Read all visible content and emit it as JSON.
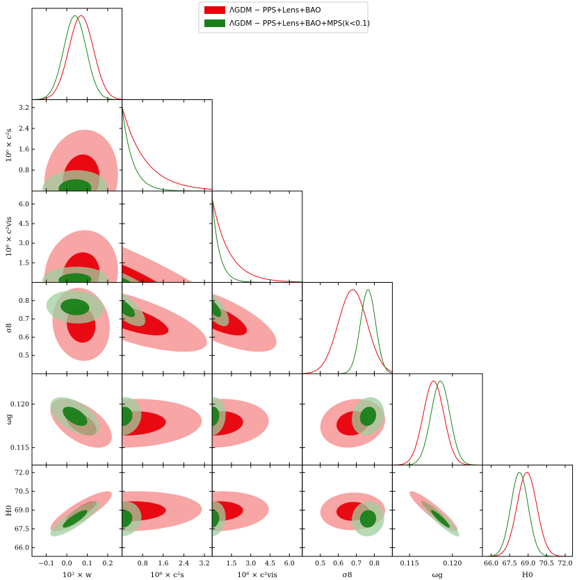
{
  "chart_data": {
    "type": "triangle-corner",
    "colors": {
      "series1": "#e8000b",
      "series2": "#1a7f1a",
      "series1_light": "#f7a0a0",
      "series2_light": "#9fcf9f"
    },
    "legend": {
      "position": "top-center",
      "entries": [
        "ΛGDM − PPS+Lens+BAO",
        "ΛGDM − PPS+Lens+BAO+MPS(k<0.1)"
      ]
    },
    "parameters": [
      {
        "name": "w",
        "label": "10² × w",
        "range": [
          -0.17,
          0.27
        ],
        "ticks": [
          "−0.1",
          "0.0",
          "0.1",
          "0.2"
        ],
        "tick_values": [
          -0.1,
          0.0,
          0.1,
          0.2
        ]
      },
      {
        "name": "cs2",
        "label": "10⁶ × c²s",
        "range": [
          0,
          3.5
        ],
        "ticks": [
          "0.8",
          "1.6",
          "2.4",
          "3.2"
        ],
        "tick_values": [
          0.8,
          1.6,
          2.4,
          3.2
        ]
      },
      {
        "name": "cvis2",
        "label": "10⁶ × c²vis",
        "range": [
          0,
          7
        ],
        "ticks": [
          "1.5",
          "3.0",
          "4.5",
          "6.0"
        ],
        "tick_values": [
          1.5,
          3.0,
          4.5,
          6.0
        ]
      },
      {
        "name": "sigma8",
        "label": "σ8",
        "range": [
          0.4,
          0.9
        ],
        "ticks": [
          "0.5",
          "0.6",
          "0.7",
          "0.8"
        ],
        "tick_values": [
          0.5,
          0.6,
          0.7,
          0.8
        ]
      },
      {
        "name": "omega_g",
        "label": "ωg",
        "range": [
          0.113,
          0.1235
        ],
        "ticks": [
          "0.115",
          "0.120"
        ],
        "tick_values": [
          0.115,
          0.12
        ]
      },
      {
        "name": "H0",
        "label": "H0",
        "range": [
          65.3,
          72.6
        ],
        "ticks": [
          "66.0",
          "67.5",
          "69.0",
          "70.5",
          "72.0"
        ],
        "tick_values": [
          66.0,
          67.5,
          69.0,
          70.5,
          72.0
        ]
      }
    ],
    "row_ticks": [
      null,
      {
        "ticks": [
          "0.8",
          "1.6",
          "2.4",
          "3.2"
        ],
        "tick_values": [
          0.8,
          1.6,
          2.4,
          3.2
        ]
      },
      {
        "ticks": [
          "1.5",
          "3.0",
          "4.5",
          "6.0"
        ],
        "tick_values": [
          1.5,
          3.0,
          4.5,
          6.0
        ]
      },
      {
        "ticks": [
          "0.5",
          "0.6",
          "0.7",
          "0.8"
        ],
        "tick_values": [
          0.5,
          0.6,
          0.7,
          0.8
        ]
      },
      {
        "ticks": [
          "0.115",
          "0.120"
        ],
        "tick_values": [
          0.115,
          0.12
        ]
      },
      {
        "ticks": [
          "66.0",
          "67.5",
          "69.0",
          "70.5",
          "72.0"
        ],
        "tick_values": [
          66.0,
          67.5,
          69.0,
          70.5,
          72.0
        ]
      }
    ],
    "series": [
      {
        "name": "ΛGDM − PPS+Lens+BAO",
        "marginals": [
          {
            "kind": "gauss",
            "mean": 0.07,
            "sd": 0.06
          },
          {
            "kind": "exp",
            "scale": 0.9
          },
          {
            "kind": "exp",
            "scale": 1.3
          },
          {
            "kind": "gauss",
            "mean": 0.68,
            "sd": 0.08
          },
          {
            "kind": "gauss",
            "mean": 0.1178,
            "sd": 0.0012
          },
          {
            "kind": "gauss",
            "mean": 68.9,
            "sd": 0.8
          }
        ]
      },
      {
        "name": "ΛGDM − PPS+Lens+BAO+MPS(k<0.1)",
        "marginals": [
          {
            "kind": "gauss",
            "mean": 0.04,
            "sd": 0.055
          },
          {
            "kind": "exp",
            "scale": 0.4
          },
          {
            "kind": "exp",
            "scale": 0.55
          },
          {
            "kind": "gauss",
            "mean": 0.765,
            "sd": 0.042
          },
          {
            "kind": "gauss",
            "mean": 0.1186,
            "sd": 0.0011
          },
          {
            "kind": "gauss",
            "mean": 68.3,
            "sd": 0.7
          }
        ]
      }
    ],
    "contours": {
      "1_0": {
        "s1": {
          "c": [
            0.07,
            0.45
          ],
          "s": [
            0.09,
            0.95
          ],
          "rho": 0.1,
          "anchor": "bottom"
        },
        "s2": {
          "c": [
            0.04,
            0.1
          ],
          "s": [
            0.08,
            0.35
          ],
          "rho": 0.05,
          "anchor": "bottom"
        }
      },
      "2_0": {
        "s1": {
          "c": [
            0.07,
            0.6
          ],
          "s": [
            0.09,
            1.7
          ],
          "rho": 0.1,
          "anchor": "bottom"
        },
        "s2": {
          "c": [
            0.04,
            0.2
          ],
          "s": [
            0.08,
            0.5
          ],
          "rho": 0.05,
          "anchor": "bottom"
        }
      },
      "2_1": {
        "s1": {
          "c": [
            0.0,
            0.0
          ],
          "s": [
            2.6,
            2.6
          ],
          "rho": -0.85,
          "anchor": "corner"
        },
        "s2": {
          "c": [
            0.0,
            0.0
          ],
          "s": [
            0.6,
            0.6
          ],
          "rho": -0.8,
          "anchor": "corner"
        }
      },
      "3_0": {
        "s1": {
          "c": [
            0.07,
            0.67
          ],
          "s": [
            0.07,
            0.1
          ],
          "rho": -0.1
        },
        "s2": {
          "c": [
            0.04,
            0.765
          ],
          "s": [
            0.07,
            0.045
          ],
          "rho": -0.1
        }
      },
      "3_1": {
        "s1": {
          "c": [
            0.3,
            0.7
          ],
          "s": [
            1.5,
            0.09
          ],
          "rho": -0.7,
          "anchor": "left"
        },
        "s2": {
          "c": [
            0.1,
            0.76
          ],
          "s": [
            0.4,
            0.05
          ],
          "rho": -0.7,
          "anchor": "left"
        }
      },
      "3_2": {
        "s1": {
          "c": [
            0.4,
            0.7
          ],
          "s": [
            2.3,
            0.09
          ],
          "rho": -0.7,
          "anchor": "left"
        },
        "s2": {
          "c": [
            0.1,
            0.76
          ],
          "s": [
            0.6,
            0.05
          ],
          "rho": -0.7,
          "anchor": "left"
        }
      },
      "3_3": null,
      "4_0": {
        "s1": {
          "c": [
            0.07,
            0.1178
          ],
          "s": [
            0.075,
            0.0014
          ],
          "rho": -0.55
        },
        "s2": {
          "c": [
            0.04,
            0.1186
          ],
          "s": [
            0.06,
            0.0011
          ],
          "rho": -0.55
        }
      },
      "4_1": {
        "s1": {
          "c": [
            0.3,
            0.1178
          ],
          "s": [
            1.4,
            0.0014
          ],
          "rho": 0.1,
          "anchor": "left"
        },
        "s2": {
          "c": [
            0.05,
            0.1186
          ],
          "s": [
            0.35,
            0.0011
          ],
          "rho": 0.1,
          "anchor": "left"
        }
      },
      "4_2": {
        "s1": {
          "c": [
            0.4,
            0.1178
          ],
          "s": [
            2.0,
            0.0014
          ],
          "rho": 0.1,
          "anchor": "left"
        },
        "s2": {
          "c": [
            0.05,
            0.1186
          ],
          "s": [
            0.5,
            0.0011
          ],
          "rho": 0.1,
          "anchor": "left"
        }
      },
      "4_3": {
        "s1": {
          "c": [
            0.68,
            0.1178
          ],
          "s": [
            0.09,
            0.0014
          ],
          "rho": 0.15
        },
        "s2": {
          "c": [
            0.765,
            0.1186
          ],
          "s": [
            0.045,
            0.0011
          ],
          "rho": 0.15
        }
      },
      "5_0": {
        "s1": {
          "c": [
            0.07,
            68.9
          ],
          "s": [
            0.075,
            0.8
          ],
          "rho": 0.85
        },
        "s2": {
          "c": [
            0.04,
            68.3
          ],
          "s": [
            0.06,
            0.7
          ],
          "rho": 0.85
        }
      },
      "5_1": {
        "s1": {
          "c": [
            0.3,
            68.9
          ],
          "s": [
            1.4,
            0.8
          ],
          "rho": 0.1,
          "anchor": "left"
        },
        "s2": {
          "c": [
            0.05,
            68.3
          ],
          "s": [
            0.35,
            0.7
          ],
          "rho": 0.1,
          "anchor": "left"
        }
      },
      "5_2": {
        "s1": {
          "c": [
            0.4,
            68.9
          ],
          "s": [
            2.0,
            0.8
          ],
          "rho": 0.1,
          "anchor": "left"
        },
        "s2": {
          "c": [
            0.05,
            68.3
          ],
          "s": [
            0.5,
            0.7
          ],
          "rho": 0.1,
          "anchor": "left"
        }
      },
      "5_3": {
        "s1": {
          "c": [
            0.68,
            68.9
          ],
          "s": [
            0.09,
            0.75
          ],
          "rho": 0.05
        },
        "s2": {
          "c": [
            0.765,
            68.3
          ],
          "s": [
            0.045,
            0.7
          ],
          "rho": 0.05
        }
      },
      "5_4": {
        "s1": {
          "c": [
            0.1178,
            68.9
          ],
          "s": [
            0.0014,
            0.8
          ],
          "rho": -0.92
        },
        "s2": {
          "c": [
            0.1186,
            68.3
          ],
          "s": [
            0.0011,
            0.7
          ],
          "rho": -0.92
        }
      }
    }
  }
}
